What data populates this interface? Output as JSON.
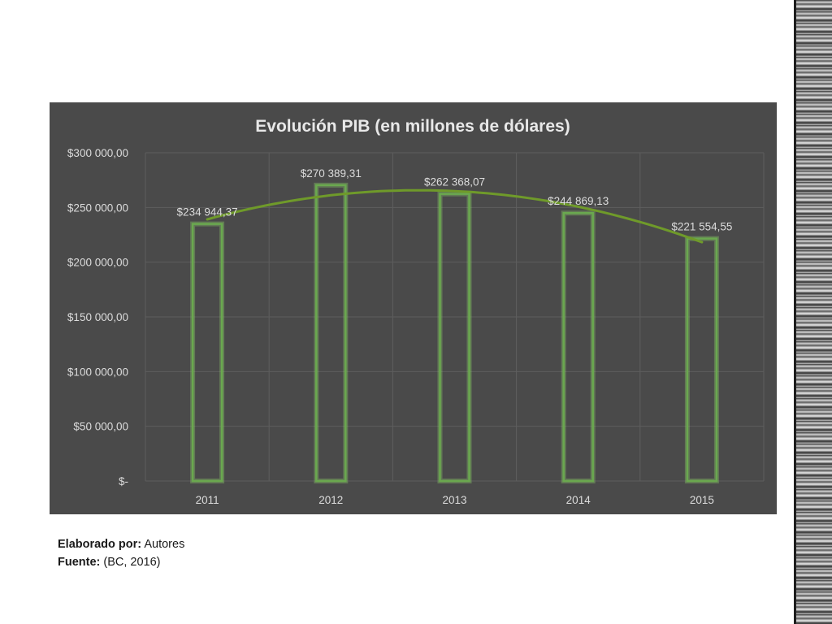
{
  "chart_data": {
    "type": "bar",
    "title": "Evolución PIB (en millones de dólares)",
    "categories": [
      "2011",
      "2012",
      "2013",
      "2014",
      "2015"
    ],
    "values": [
      234944.37,
      270389.31,
      262368.07,
      244869.13,
      221554.55
    ],
    "data_labels": [
      "$234 944,37",
      "$270 389,31",
      "$262 368,07",
      "$244 869,13",
      "$221 554,55"
    ],
    "y_ticks": [
      0,
      50000,
      100000,
      150000,
      200000,
      250000,
      300000
    ],
    "y_tick_labels": [
      "$-",
      "$50 000,00",
      "$100 000,00",
      "$150 000,00",
      "$200 000,00",
      "$250 000,00",
      "$300 000,00"
    ],
    "ylim": [
      0,
      300000
    ],
    "xlabel": "",
    "ylabel": "",
    "trendline": "polynomial",
    "grid": true,
    "colors": {
      "background": "#4a4a4a",
      "bar_outline": "#6aa84f",
      "bar_glow": "#8fd16a",
      "trendline": "#6f9a2a",
      "grid": "#5e5e5e",
      "text": "#dcdcdc"
    }
  },
  "notes": {
    "made_by_label": "Elaborado por:",
    "made_by_value": " Autores",
    "source_label": "Fuente:",
    "source_value": " (BC, 2016)"
  }
}
